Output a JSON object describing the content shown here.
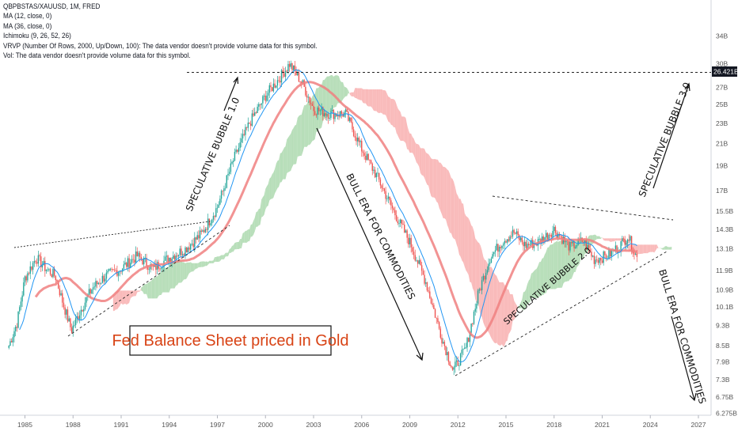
{
  "legend": {
    "symbol": "QBPBSTAS/XAUUSD, 1M, FRED",
    "ma12": "MA (12, close, 0)",
    "ma36": "MA (36, close, 0)",
    "ichimoku": "Ichimoku (9, 26, 52, 26)",
    "vrvp": "VRVP (Number Of Rows, 2000, Up/Down, 100): The data vendor doesn't provide volume data for this symbol.",
    "vol": "Vol: The data vendor doesn't provide volume data for this symbol."
  },
  "colors": {
    "up_candle": "#26a69a",
    "down_candle": "#ef5350",
    "ma12": "#2196f3",
    "ma36": "#f08080",
    "cloud_bull": "#a5d6a7",
    "cloud_bear": "#f7a9a9",
    "title_box_text": "#d84315",
    "price_tag_bg": "#131722"
  },
  "chart_data": {
    "type": "candlestick",
    "series_label": "QBPBSTAS/XAUUSD",
    "timeframe": "1M",
    "x_ticks": [
      "1985",
      "1988",
      "1991",
      "1994",
      "1997",
      "2000",
      "2003",
      "2006",
      "2009",
      "2012",
      "2015",
      "2018",
      "2021",
      "2024",
      "2027"
    ],
    "y_ticks": [
      "34B",
      "30B",
      "27B",
      "25B",
      "23B",
      "21B",
      "19B",
      "17B",
      "15.5B",
      "14.3B",
      "13.1B",
      "11.9B",
      "10.9B",
      "10.1B",
      "9.3B",
      "8.5B",
      "7.9B",
      "7.3B",
      "6.75B",
      "6.275B"
    ],
    "y_scale": "log",
    "last_price_label": "26.421B",
    "approx_close": [
      {
        "x": 1984.0,
        "y": 8.5
      },
      {
        "x": 1984.5,
        "y": 9.4
      },
      {
        "x": 1985.0,
        "y": 11.5
      },
      {
        "x": 1985.7,
        "y": 12.6
      },
      {
        "x": 1986.3,
        "y": 12.0
      },
      {
        "x": 1986.9,
        "y": 11.6
      },
      {
        "x": 1987.4,
        "y": 10.2
      },
      {
        "x": 1987.9,
        "y": 9.1
      },
      {
        "x": 1988.5,
        "y": 10.0
      },
      {
        "x": 1989.2,
        "y": 11.0
      },
      {
        "x": 1990.0,
        "y": 11.6
      },
      {
        "x": 1991.0,
        "y": 12.0
      },
      {
        "x": 1992.0,
        "y": 12.7
      },
      {
        "x": 1993.0,
        "y": 12.0
      },
      {
        "x": 1994.0,
        "y": 12.6
      },
      {
        "x": 1995.0,
        "y": 13.1
      },
      {
        "x": 1996.0,
        "y": 14.0
      },
      {
        "x": 1997.0,
        "y": 15.8
      },
      {
        "x": 1998.0,
        "y": 19.5
      },
      {
        "x": 1999.0,
        "y": 23.0
      },
      {
        "x": 2000.0,
        "y": 26.0
      },
      {
        "x": 2001.0,
        "y": 28.5
      },
      {
        "x": 2001.5,
        "y": 30.0
      },
      {
        "x": 2002.3,
        "y": 27.5
      },
      {
        "x": 2003.0,
        "y": 24.5
      },
      {
        "x": 2004.0,
        "y": 24.0
      },
      {
        "x": 2005.0,
        "y": 24.0
      },
      {
        "x": 2006.0,
        "y": 20.5
      },
      {
        "x": 2007.0,
        "y": 18.0
      },
      {
        "x": 2008.0,
        "y": 15.5
      },
      {
        "x": 2009.0,
        "y": 13.5
      },
      {
        "x": 2010.0,
        "y": 11.3
      },
      {
        "x": 2011.0,
        "y": 8.8
      },
      {
        "x": 2011.7,
        "y": 7.6
      },
      {
        "x": 2012.5,
        "y": 8.4
      },
      {
        "x": 2013.3,
        "y": 10.8
      },
      {
        "x": 2014.0,
        "y": 12.6
      },
      {
        "x": 2014.8,
        "y": 13.6
      },
      {
        "x": 2015.5,
        "y": 14.1
      },
      {
        "x": 2016.2,
        "y": 13.3
      },
      {
        "x": 2017.0,
        "y": 13.5
      },
      {
        "x": 2018.0,
        "y": 14.3
      },
      {
        "x": 2019.0,
        "y": 13.2
      },
      {
        "x": 2019.8,
        "y": 13.6
      },
      {
        "x": 2020.5,
        "y": 12.5
      },
      {
        "x": 2021.3,
        "y": 12.7
      },
      {
        "x": 2022.0,
        "y": 13.2
      },
      {
        "x": 2022.6,
        "y": 13.9
      },
      {
        "x": 2023.2,
        "y": 12.5
      }
    ],
    "annotations": [
      {
        "text": "SPECULATIVE BUBBLE 1.0"
      },
      {
        "text": "BULL ERA FOR COMMODITIES"
      },
      {
        "text": "SPECULATIVE BUBBLE 2.0"
      },
      {
        "text": "SPECULATIVE BUBBLE 3.0"
      },
      {
        "text": "BULL ERA FOR COMMODITIES"
      },
      {
        "text": "Fed Balance Sheet priced in Gold"
      }
    ]
  }
}
